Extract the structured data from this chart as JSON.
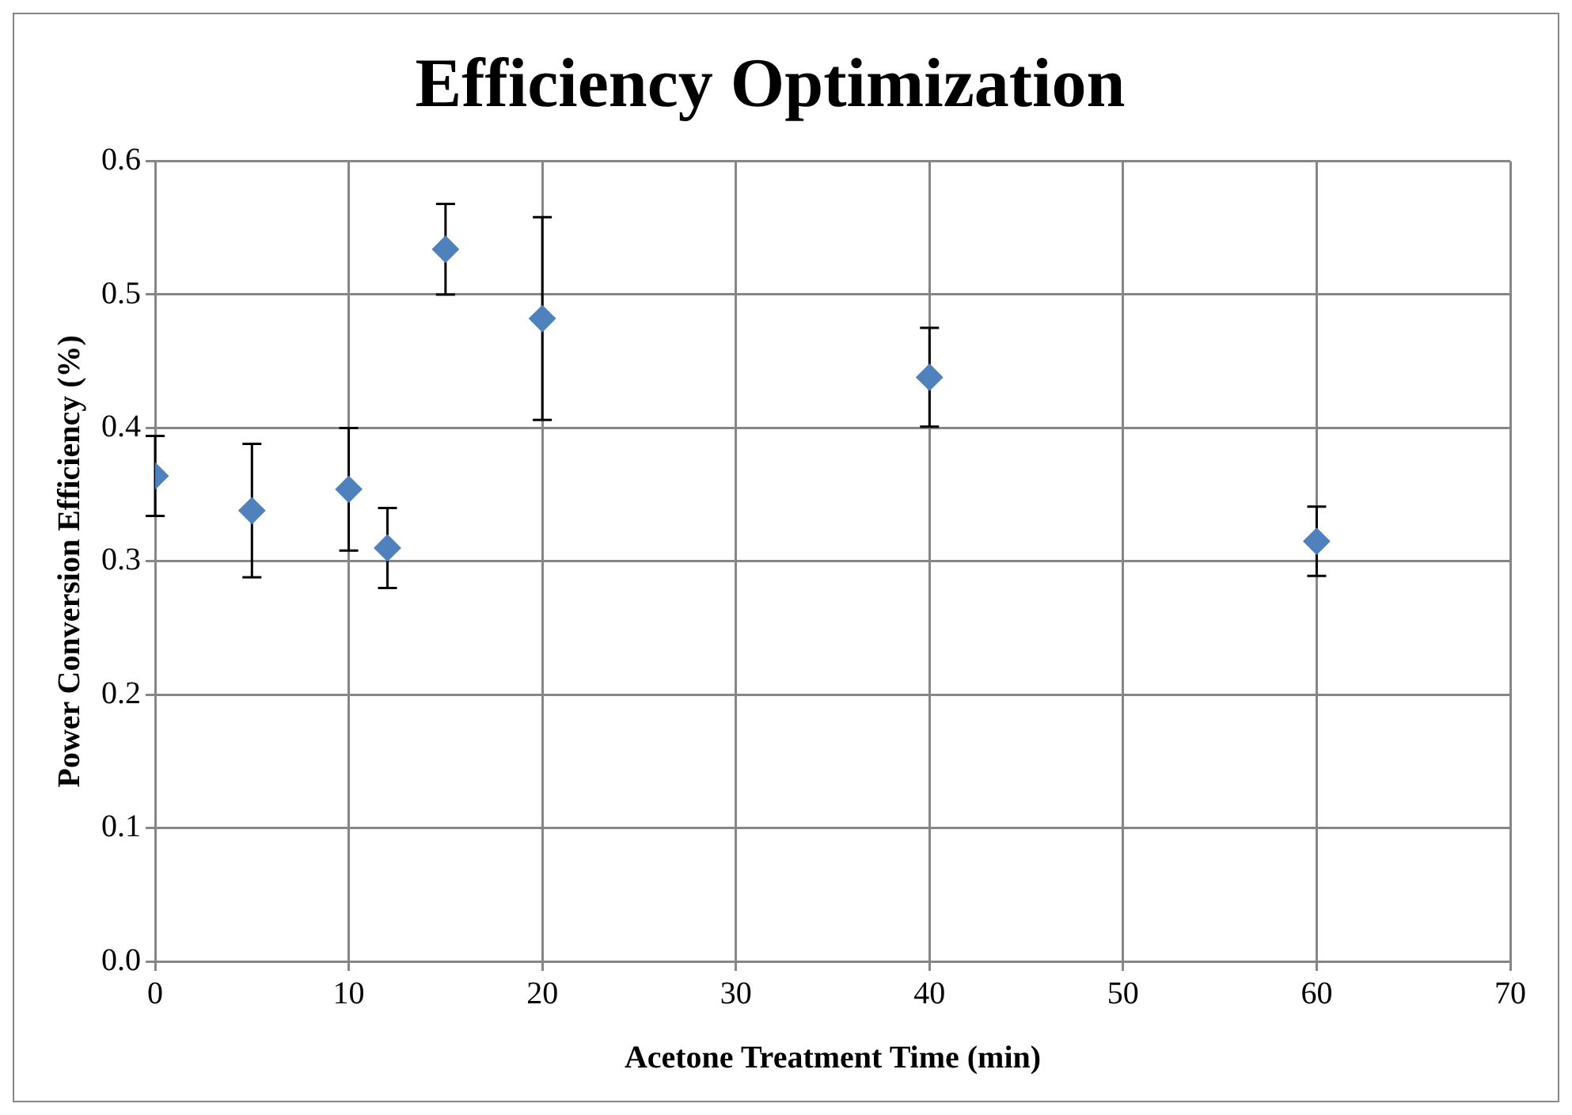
{
  "chart_data": {
    "type": "scatter",
    "title": "Efficiency Optimization",
    "xlabel": "Acetone Treatment Time (min)",
    "ylabel": "Power Conversion Efficiency (%)",
    "x": [
      0,
      5,
      10,
      12,
      15,
      20,
      40,
      60
    ],
    "series": [
      {
        "color": "#4f81bd",
        "values": [
          0.364,
          0.338,
          0.354,
          0.31,
          0.534,
          0.482,
          0.438,
          0.315
        ],
        "errors": [
          0.03,
          0.05,
          0.046,
          0.03,
          0.034,
          0.076,
          0.037,
          0.026
        ]
      }
    ],
    "xlim": [
      0,
      70
    ],
    "xticks": [
      0,
      10,
      20,
      30,
      40,
      50,
      60,
      70
    ],
    "ylim": [
      0,
      0.6
    ],
    "yticks": [
      {
        "value": 0,
        "label": "0.0"
      },
      0.1,
      0.2,
      0.3,
      0.4,
      0.5,
      0.6
    ],
    "grid": true,
    "legend": false,
    "marker": "diamond"
  }
}
